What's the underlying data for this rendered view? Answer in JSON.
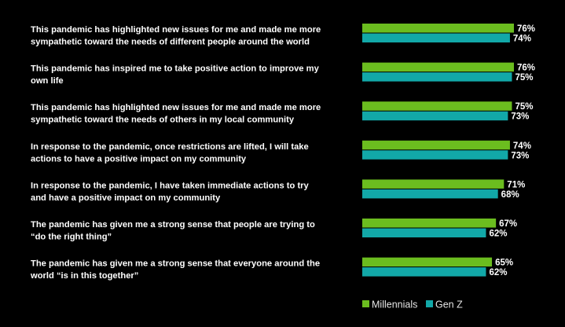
{
  "chart_data": {
    "type": "bar",
    "orientation": "horizontal",
    "categories": [
      [
        "This pandemic has highlighted new issues for me and made me more",
        "sympathetic toward the needs of different people around the world"
      ],
      [
        "This pandemic has inspired me to take positive action to improve my",
        "own life"
      ],
      [
        "This pandemic has highlighted new issues for me and made me more",
        "sympathetic toward the needs of others in my local community"
      ],
      [
        "In response to the pandemic, once restrictions are lifted, I will take",
        "actions to have a positive impact on my community"
      ],
      [
        "In response to the pandemic, I have taken immediate actions to try",
        "and have a positive impact on my community"
      ],
      [
        "The pandemic has given me a strong sense that people are trying to",
        "“do the right thing”"
      ],
      [
        "The pandemic has given me a strong sense that everyone around the",
        "world “is in this together”"
      ]
    ],
    "series": [
      {
        "name": "Millennials",
        "color": "#6bbd1f",
        "values": [
          76,
          76,
          75,
          74,
          71,
          67,
          65
        ],
        "labels": [
          "76%",
          "76%",
          "75%",
          "74%",
          "71%",
          "67%",
          "65%"
        ]
      },
      {
        "name": "Gen Z",
        "color": "#12a8a8",
        "values": [
          74,
          75,
          73,
          73,
          68,
          62,
          62
        ],
        "labels": [
          "74%",
          "75%",
          "73%",
          "73%",
          "68%",
          "62%",
          "62%"
        ]
      }
    ],
    "unit": "%",
    "legend_position": "bottom-right",
    "grid": false
  }
}
